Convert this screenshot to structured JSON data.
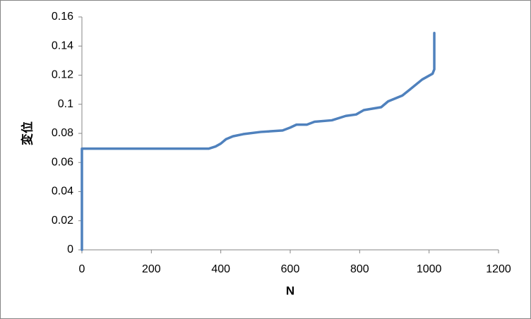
{
  "chart_data": {
    "type": "line",
    "xlabel": "N",
    "ylabel": "変位",
    "x": [
      0,
      0,
      365,
      385,
      400,
      415,
      435,
      465,
      515,
      578,
      600,
      618,
      648,
      670,
      720,
      760,
      790,
      812,
      862,
      882,
      923,
      944,
      980,
      1010,
      1015,
      1015
    ],
    "values": [
      0,
      0.0695,
      0.0695,
      0.071,
      0.073,
      0.076,
      0.078,
      0.0795,
      0.081,
      0.082,
      0.084,
      0.086,
      0.086,
      0.088,
      0.089,
      0.092,
      0.093,
      0.096,
      0.098,
      0.102,
      0.106,
      0.11,
      0.117,
      0.121,
      0.124,
      0.149
    ],
    "color": "#4f81bd",
    "xlim": [
      0,
      1200
    ],
    "xticks": [
      0,
      200,
      400,
      600,
      800,
      1000,
      1200
    ],
    "ylim": [
      0,
      0.16
    ],
    "yticks": [
      0,
      0.02,
      0.04,
      0.06,
      0.08,
      0.1,
      0.12,
      0.14,
      0.16
    ],
    "grid": false
  }
}
